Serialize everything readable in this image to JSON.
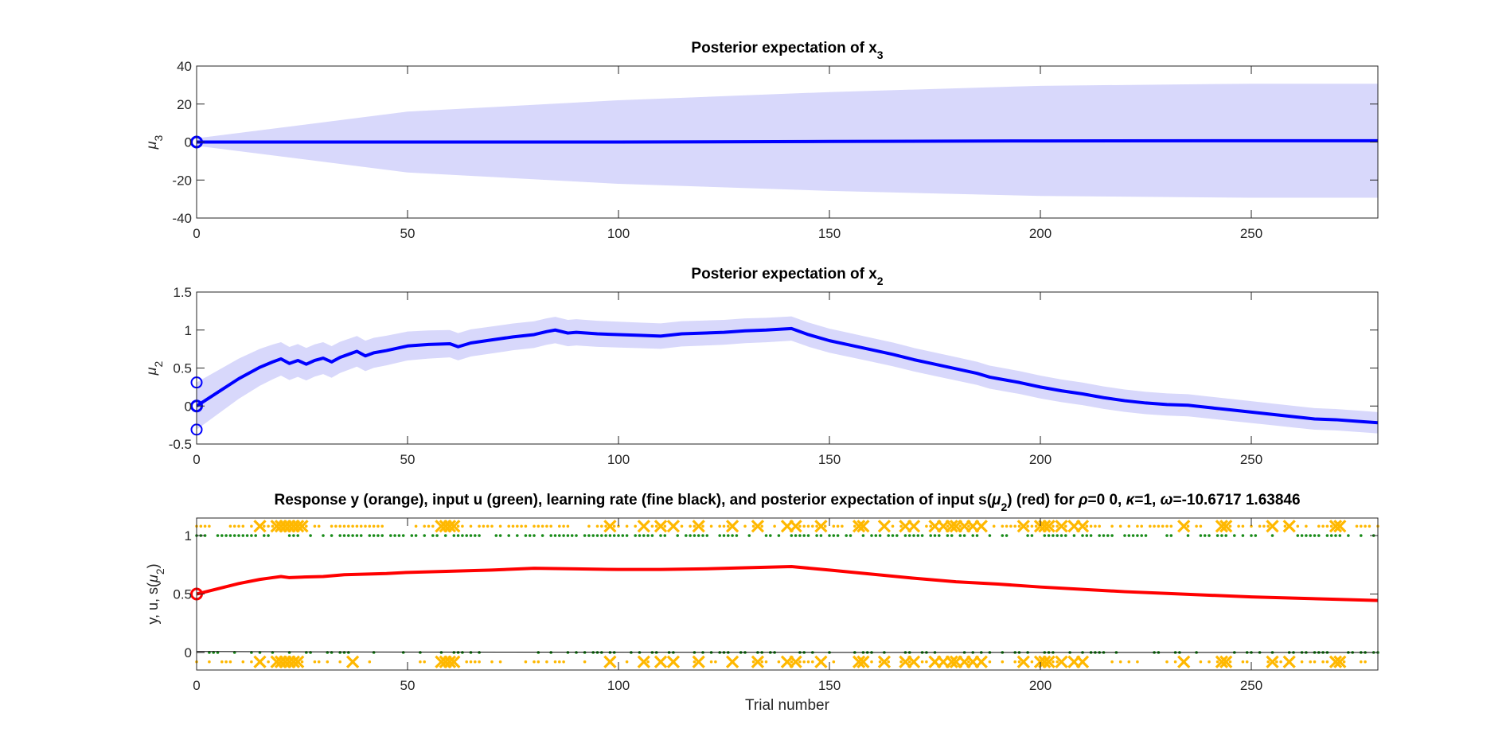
{
  "chart_data": [
    {
      "type": "line",
      "title": "Posterior expectation of x",
      "title_sub": "3",
      "ylabel": "μ",
      "ylabel_sub": "3",
      "xlim": [
        0,
        280
      ],
      "ylim": [
        -40,
        40
      ],
      "xticks": [
        0,
        50,
        100,
        150,
        200,
        250
      ],
      "yticks": [
        -40,
        -20,
        0,
        20,
        40
      ],
      "mean": {
        "x": [
          0,
          50,
          100,
          150,
          200,
          250,
          280
        ],
        "y": [
          0,
          0,
          0,
          0.3,
          0.6,
          0.7,
          0.7
        ]
      },
      "band_halfwidth": {
        "x": [
          0,
          5,
          20,
          50,
          100,
          150,
          200,
          250,
          280
        ],
        "y": [
          2,
          6,
          11,
          16,
          22,
          26,
          29,
          30,
          30
        ]
      },
      "prior_marker": {
        "x": 0,
        "y": 0
      },
      "colors": {
        "line": "#0000ff",
        "band": "#d8d8fb"
      }
    },
    {
      "type": "line",
      "title": "Posterior expectation of x",
      "title_sub": "2",
      "ylabel": "μ",
      "ylabel_sub": "2",
      "xlim": [
        0,
        280
      ],
      "ylim": [
        -0.5,
        1.5
      ],
      "xticks": [
        0,
        50,
        100,
        150,
        200,
        250
      ],
      "yticks": [
        -0.5,
        0,
        0.5,
        1,
        1.5
      ],
      "mean": {
        "x": [
          0,
          5,
          10,
          15,
          18,
          20,
          22,
          24,
          26,
          28,
          30,
          32,
          34,
          36,
          38,
          40,
          42,
          45,
          50,
          55,
          60,
          62,
          65,
          70,
          75,
          80,
          83,
          85,
          88,
          90,
          95,
          100,
          105,
          110,
          115,
          120,
          125,
          130,
          135,
          141,
          145,
          150,
          155,
          160,
          165,
          170,
          175,
          180,
          185,
          188,
          190,
          195,
          200,
          205,
          210,
          215,
          220,
          225,
          230,
          235,
          240,
          245,
          250,
          255,
          260,
          265,
          270,
          275,
          280
        ],
        "y": [
          0,
          0.18,
          0.36,
          0.51,
          0.58,
          0.62,
          0.56,
          0.6,
          0.55,
          0.6,
          0.63,
          0.58,
          0.64,
          0.68,
          0.72,
          0.66,
          0.7,
          0.73,
          0.79,
          0.81,
          0.82,
          0.78,
          0.83,
          0.87,
          0.91,
          0.94,
          0.98,
          1.0,
          0.96,
          0.97,
          0.95,
          0.94,
          0.93,
          0.92,
          0.95,
          0.96,
          0.97,
          0.99,
          1.0,
          1.02,
          0.94,
          0.86,
          0.8,
          0.74,
          0.68,
          0.61,
          0.55,
          0.49,
          0.43,
          0.38,
          0.36,
          0.31,
          0.25,
          0.2,
          0.16,
          0.11,
          0.07,
          0.04,
          0.02,
          0.01,
          -0.02,
          -0.05,
          -0.08,
          -0.11,
          -0.14,
          -0.17,
          -0.18,
          -0.2,
          -0.22
        ]
      },
      "band_halfwidth": {
        "x": [
          0,
          20,
          60,
          100,
          140,
          200,
          280
        ],
        "y": [
          0.31,
          0.22,
          0.18,
          0.17,
          0.16,
          0.15,
          0.14
        ]
      },
      "prior_markers": [
        {
          "x": 0,
          "y": 0
        },
        {
          "x": 0,
          "y": 0.31
        },
        {
          "x": 0,
          "y": -0.31
        }
      ],
      "colors": {
        "line": "#0000ff",
        "band": "#d8d8fb"
      }
    },
    {
      "type": "scatter",
      "title_parts": [
        "Response y (orange), input u (green), learning rate (fine black), and posterior expectation of input s(",
        "μ",
        "2",
        ") (red) for ",
        "ρ",
        "=0  0, ",
        "κ",
        "=1, ",
        "ω",
        "=-10.6717      1.63846"
      ],
      "ylabel_parts": [
        "y, u, s(",
        "μ",
        "2",
        ")"
      ],
      "xlabel": "Trial number",
      "xlim": [
        0,
        280
      ],
      "ylim": [
        -0.15,
        1.15
      ],
      "xticks": [
        0,
        50,
        100,
        150,
        200,
        250
      ],
      "yticks": [
        0,
        0.5,
        1
      ],
      "response_top_crosses": [
        15,
        19,
        20,
        21,
        22,
        23,
        24,
        25,
        58,
        59,
        60,
        61,
        98,
        106,
        110,
        113,
        119,
        127,
        133,
        140,
        142,
        148,
        157,
        158,
        163,
        168,
        170,
        175,
        177,
        179,
        180,
        182,
        184,
        186,
        196,
        200,
        201,
        202,
        205,
        208,
        210,
        234,
        243,
        244,
        255,
        259,
        270,
        271
      ],
      "response_bottom_crosses": [
        15,
        19,
        20,
        21,
        22,
        23,
        24,
        37,
        58,
        59,
        60,
        61,
        98,
        106,
        110,
        113,
        119,
        127,
        133,
        140,
        142,
        148,
        157,
        158,
        163,
        168,
        170,
        175,
        177,
        179,
        180,
        182,
        184,
        186,
        196,
        200,
        201,
        202,
        205,
        208,
        210,
        234,
        243,
        244,
        255,
        259,
        270,
        271
      ],
      "input_u": {
        "y": 1,
        "top_density": 0.65,
        "bottom_density": 0.35
      },
      "learning_rate": {
        "x": [
          0,
          50,
          100,
          150,
          200,
          280
        ],
        "y": [
          0.008,
          0.004,
          0.002,
          0.001,
          0.0008,
          0.0006
        ]
      },
      "s_mu2": {
        "x": [
          0,
          5,
          10,
          15,
          18,
          20,
          22,
          25,
          30,
          35,
          40,
          45,
          50,
          60,
          70,
          80,
          90,
          100,
          110,
          120,
          130,
          141,
          150,
          160,
          170,
          180,
          190,
          200,
          210,
          220,
          230,
          240,
          250,
          260,
          270,
          280
        ],
        "y": [
          0.5,
          0.545,
          0.59,
          0.625,
          0.64,
          0.65,
          0.64,
          0.645,
          0.65,
          0.665,
          0.67,
          0.675,
          0.685,
          0.695,
          0.705,
          0.72,
          0.715,
          0.71,
          0.71,
          0.715,
          0.725,
          0.735,
          0.705,
          0.67,
          0.635,
          0.605,
          0.585,
          0.56,
          0.54,
          0.52,
          0.505,
          0.49,
          0.475,
          0.465,
          0.455,
          0.445
        ]
      },
      "prior_marker": {
        "x": 0,
        "y": 0.5
      },
      "colors": {
        "response": "#ffb800",
        "input": "#1a8c1a",
        "learning_rate": "#000000",
        "s_mu2": "#ff0000"
      }
    }
  ]
}
